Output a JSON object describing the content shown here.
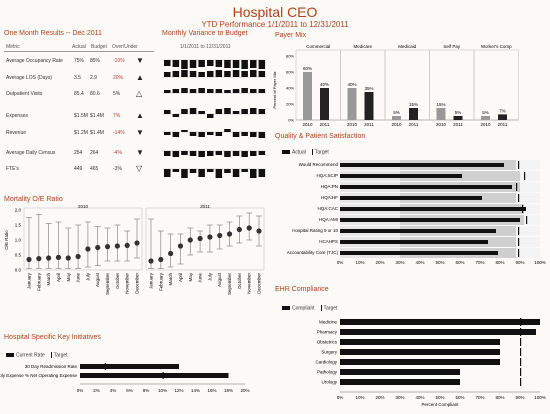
{
  "header": {
    "title": "Hospital CEO",
    "subtitle": "YTD Performance 1/1/2011 to 12/31/2011"
  },
  "one_month": {
    "title": "One Month Results -- Dec 2011",
    "cols": [
      "Metric",
      "Actual",
      "Budget",
      "Over/Under"
    ],
    "rows": [
      {
        "metric": "Average Occupancy Rate",
        "actual": "75%",
        "budget": "85%",
        "over": "-10%",
        "red": true,
        "arrow": "▼"
      },
      {
        "metric": "Average LOS (Days)",
        "actual": "3.5",
        "budget": "2.9",
        "over": "20%",
        "red": true,
        "arrow": "▲"
      },
      {
        "metric": "Outpatient Visits",
        "actual": "85.4",
        "budget": "80.6",
        "over": "5%",
        "red": false,
        "arrow": "△"
      },
      {
        "metric": "Expenses",
        "actual": "$1.5M",
        "budget": "$1.4M",
        "over": "7%",
        "red": true,
        "arrow": "▲"
      },
      {
        "metric": "Revenue",
        "actual": "$1.2M",
        "budget": "$1.4M",
        "over": "-14%",
        "red": true,
        "arrow": "▼"
      },
      {
        "metric": "Average Daily Census",
        "actual": "254",
        "budget": "264",
        "over": "-4%",
        "red": true,
        "arrow": "▼"
      },
      {
        "metric": "FTE's",
        "actual": "449",
        "budget": "465",
        "over": "-3%",
        "red": false,
        "arrow": "▽"
      }
    ]
  },
  "variance": {
    "title": "Monthly Variance to Budget",
    "range": "1/1/2011 to 12/31/2011",
    "rows": [
      [
        -6,
        -7,
        -9,
        -8,
        -7,
        -6,
        -7,
        -8,
        -8,
        -9,
        -8,
        -9
      ],
      [
        5,
        6,
        7,
        6,
        5,
        6,
        7,
        6,
        7,
        6,
        7,
        6
      ],
      [
        3,
        4,
        5,
        4,
        5,
        4,
        4,
        3,
        4,
        5,
        4,
        4
      ],
      [
        4,
        -3,
        5,
        6,
        3,
        -4,
        5,
        6,
        3,
        5,
        6,
        5
      ],
      [
        -3,
        -5,
        2,
        -4,
        -5,
        -3,
        -4,
        3,
        -5,
        -4,
        -5,
        -6
      ],
      [
        -5,
        -6,
        -4,
        -5,
        -6,
        -5,
        -4,
        -6,
        -5,
        -6,
        -5,
        -4
      ],
      [
        -8,
        -3,
        -9,
        -4,
        -8,
        -3,
        -9,
        -4,
        -8,
        -3,
        -9,
        -8
      ]
    ]
  },
  "payer": {
    "title": "Payer Mix",
    "ylabel": "Percent of Payer Mix",
    "groups": [
      {
        "name": "Commercial",
        "v2010": 60,
        "v2011": 40
      },
      {
        "name": "Medicare",
        "v2010": 40,
        "v2011": 35
      },
      {
        "name": "Medicaid",
        "v2010": 5,
        "v2011": 15
      },
      {
        "name": "Self Pay",
        "v2010": 15,
        "v2011": 5
      },
      {
        "name": "Worker's Comp",
        "v2010": 5,
        "v2011": 7
      }
    ],
    "years": [
      "2010",
      "2011"
    ],
    "ticks": [
      "80%",
      "60%",
      "40%",
      "20%",
      "0%"
    ]
  },
  "quality": {
    "title": "Quality & Patient Satisfaction",
    "legend": {
      "actual": "Actual",
      "target": "Target"
    },
    "items": [
      {
        "label": "Would Recommend",
        "actual": 82,
        "target": 89,
        "band": 88
      },
      {
        "label": "HQA:SCIP",
        "actual": 61,
        "target": 92,
        "band": 90
      },
      {
        "label": "HQA:PN",
        "actual": 86,
        "target": 88,
        "band": 90
      },
      {
        "label": "HQA:HF",
        "actual": 71,
        "target": 89,
        "band": 88
      },
      {
        "label": "HQA:CAC",
        "actual": 93,
        "target": 91,
        "band": 92
      },
      {
        "label": "HQA:AMI",
        "actual": 90,
        "target": 93,
        "band": 92
      },
      {
        "label": "Hospital Rating 9 or 10",
        "actual": 78,
        "target": 89,
        "band": 88
      },
      {
        "label": "HCAHPS",
        "actual": 74,
        "target": 89,
        "band": 88
      },
      {
        "label": "Accountability Core (TJC)",
        "actual": 79,
        "target": 89,
        "band": 88
      }
    ],
    "ticks": [
      "0%",
      "10%",
      "20%",
      "30%",
      "40%",
      "50%",
      "60%",
      "70%",
      "80%",
      "90%",
      "100%"
    ]
  },
  "mortality": {
    "title": "Mortality O/E Ratio",
    "ylabel": "O/E Ratio",
    "years": [
      "2010",
      "2011"
    ],
    "ticks": [
      "2.0",
      "1.5",
      "1.0",
      "0.5",
      "0.0"
    ],
    "months": [
      "January",
      "February",
      "March",
      "April",
      "May",
      "June",
      "July",
      "August",
      "September",
      "October",
      "November",
      "December"
    ],
    "points": [
      {
        "v": 0.35,
        "lo": 0.05,
        "hi": 1.75
      },
      {
        "v": 0.38,
        "lo": 0.05,
        "hi": 1.85
      },
      {
        "v": 0.4,
        "lo": 0.05,
        "hi": 1.55
      },
      {
        "v": 0.42,
        "lo": 0.05,
        "hi": 1.6
      },
      {
        "v": 0.4,
        "lo": 0.05,
        "hi": 1.4
      },
      {
        "v": 0.45,
        "lo": 0.05,
        "hi": 1.5
      },
      {
        "v": 0.7,
        "lo": 0.1,
        "hi": 1.6
      },
      {
        "v": 0.75,
        "lo": 0.15,
        "hi": 1.45
      },
      {
        "v": 0.78,
        "lo": 0.3,
        "hi": 1.4
      },
      {
        "v": 0.8,
        "lo": 0.3,
        "hi": 1.5
      },
      {
        "v": 0.82,
        "lo": 0.3,
        "hi": 1.3
      },
      {
        "v": 0.9,
        "lo": 0.4,
        "hi": 1.7
      },
      {
        "v": 0.3,
        "lo": 0.05,
        "hi": 1.7
      },
      {
        "v": 0.35,
        "lo": 0.05,
        "hi": 1.3
      },
      {
        "v": 0.55,
        "lo": 0.1,
        "hi": 1.2
      },
      {
        "v": 0.8,
        "lo": 0.2,
        "hi": 1.2
      },
      {
        "v": 1.0,
        "lo": 0.5,
        "hi": 1.4
      },
      {
        "v": 1.05,
        "lo": 0.6,
        "hi": 1.3
      },
      {
        "v": 1.1,
        "lo": 0.6,
        "hi": 1.5
      },
      {
        "v": 1.15,
        "lo": 0.7,
        "hi": 1.5
      },
      {
        "v": 1.2,
        "lo": 0.8,
        "hi": 1.6
      },
      {
        "v": 1.35,
        "lo": 0.9,
        "hi": 1.8
      },
      {
        "v": 1.4,
        "lo": 1.0,
        "hi": 1.9
      },
      {
        "v": 1.3,
        "lo": 0.8,
        "hi": 1.8
      }
    ]
  },
  "initiatives": {
    "title": "Hospital Specific Key Initiatives",
    "legend": {
      "current": "Current Rate",
      "target": "Target"
    },
    "items": [
      {
        "label": "30 Day Readmission Rate",
        "value": 12,
        "target": 3
      },
      {
        "label": "Supply Expense % Net Operating Expense",
        "value": 18,
        "target": 10
      }
    ],
    "ticks": [
      "0%",
      "2%",
      "4%",
      "6%",
      "8%",
      "10%",
      "12%",
      "14%",
      "16%",
      "18%",
      "20%"
    ]
  },
  "ehr": {
    "title": "EHR Compliance",
    "legend": {
      "compliant": "Compliant",
      "target": "Target"
    },
    "xlabel": "Percent Compliant",
    "items": [
      {
        "label": "Medicine",
        "value": 100,
        "target": 90
      },
      {
        "label": "Pharmacy",
        "value": 98,
        "target": 90
      },
      {
        "label": "Obstetrics",
        "value": 80,
        "target": 90
      },
      {
        "label": "Surgery",
        "value": 80,
        "target": 90
      },
      {
        "label": "Cardiology",
        "value": 80,
        "target": 90
      },
      {
        "label": "Pathology",
        "value": 60,
        "target": 90
      },
      {
        "label": "Urology",
        "value": 60,
        "target": 90
      }
    ],
    "ticks": [
      "0%",
      "10%",
      "20%",
      "30%",
      "40%",
      "50%",
      "60%",
      "70%",
      "80%",
      "90%",
      "100%"
    ]
  }
}
